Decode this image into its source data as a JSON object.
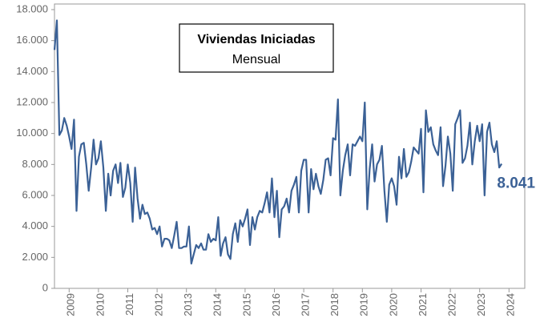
{
  "chart_data": {
    "type": "line",
    "title": "Viviendas Iniciadas",
    "subtitle": "Mensual",
    "series": [
      {
        "name": null,
        "color": "#3b6196",
        "values": [
          15400,
          17300,
          9900,
          10200,
          11000,
          10500,
          9800,
          9000,
          10900,
          5000,
          8500,
          9300,
          9400,
          8000,
          6300,
          7800,
          9600,
          8000,
          8400,
          9500,
          7800,
          5000,
          7400,
          6000,
          7600,
          8000,
          6800,
          8100,
          5900,
          6500,
          8000,
          6800,
          4300,
          7800,
          5800,
          4500,
          5400,
          4800,
          4900,
          4500,
          3800,
          3900,
          3500,
          4000,
          2700,
          3200,
          3200,
          3100,
          2600,
          3400,
          4300,
          2600,
          2600,
          2700,
          2700,
          4000,
          1600,
          2200,
          2800,
          2600,
          2900,
          2500,
          2500,
          3500,
          3000,
          3200,
          3100,
          4600,
          2100,
          2900,
          3300,
          2200,
          1900,
          3500,
          4200,
          3000,
          4400,
          4000,
          4500,
          5100,
          2800,
          4600,
          3800,
          4600,
          5000,
          4900,
          5500,
          6200,
          4900,
          7100,
          4600,
          6300,
          3300,
          5100,
          5300,
          5800,
          4900,
          6300,
          6700,
          7200,
          4900,
          7600,
          8300,
          8300,
          4900,
          7700,
          6400,
          7400,
          6600,
          6100,
          7000,
          8300,
          8400,
          7300,
          9700,
          9600,
          12200,
          6000,
          7600,
          8600,
          9300,
          7300,
          9300,
          9200,
          9500,
          9800,
          9500,
          12000,
          5100,
          7700,
          9300,
          6900,
          8000,
          8300,
          9200,
          6300,
          4300,
          6700,
          7100,
          6600,
          5400,
          8500,
          7100,
          9000,
          7200,
          7500,
          8200,
          9100,
          8900,
          8700,
          10300,
          6200,
          11500,
          10100,
          10400,
          9300,
          8900,
          8600,
          10400,
          6600,
          7900,
          9800,
          8700,
          6300,
          10600,
          11000,
          11500,
          8100,
          8400,
          9200,
          10700,
          8000,
          9500,
          10500,
          9500,
          10600,
          6000,
          10100,
          10700,
          9300,
          8800,
          9500,
          7800,
          8041
        ],
        "value_labels": [
          null,
          null,
          null,
          null,
          null,
          null,
          null,
          null,
          null,
          null,
          null,
          null,
          null,
          null,
          null,
          null,
          null,
          null,
          null,
          null,
          null,
          null,
          null,
          null,
          null,
          null,
          null,
          null,
          null,
          null,
          null,
          null,
          null,
          null,
          null,
          null,
          null,
          null,
          null,
          null,
          null,
          null,
          null,
          null,
          null,
          null,
          null,
          null,
          null,
          null,
          null,
          null,
          null,
          null,
          null,
          null,
          null,
          null,
          null,
          null,
          null,
          null,
          null,
          null,
          null,
          null,
          null,
          null,
          null,
          null,
          null,
          null,
          null,
          null,
          null,
          null,
          null,
          null,
          null,
          null,
          null,
          null,
          null,
          null,
          null,
          null,
          null,
          null,
          null,
          null,
          null,
          null,
          null,
          null,
          null,
          null,
          null,
          null,
          null,
          null,
          null,
          null,
          null,
          null,
          null,
          null,
          null,
          null,
          null,
          null,
          null,
          null,
          null,
          null,
          null,
          null,
          null,
          null,
          null,
          null,
          null,
          null,
          null,
          null,
          null,
          null,
          null,
          null,
          null,
          null,
          null,
          null,
          null,
          null,
          null,
          null,
          null,
          null,
          null,
          null,
          null,
          null,
          null,
          null,
          null,
          null,
          null,
          null,
          null,
          null,
          null,
          null,
          null,
          null,
          null,
          null,
          null,
          null,
          null,
          null,
          null,
          null,
          null,
          null,
          null,
          null,
          null,
          null,
          null,
          null,
          null,
          null,
          null,
          null,
          null,
          null,
          null,
          null,
          null,
          null,
          null,
          null,
          null,
          "8.041"
        ]
      }
    ],
    "xlim": [
      0,
      192
    ],
    "xticks": [
      {
        "value": 6,
        "label": "2009"
      },
      {
        "value": 18,
        "label": "2010"
      },
      {
        "value": 30,
        "label": "2011"
      },
      {
        "value": 42,
        "label": "2012"
      },
      {
        "value": 54,
        "label": "2013"
      },
      {
        "value": 66,
        "label": "2014"
      },
      {
        "value": 78,
        "label": "2015"
      },
      {
        "value": 90,
        "label": "2016"
      },
      {
        "value": 102,
        "label": "2017"
      },
      {
        "value": 114,
        "label": "2018"
      },
      {
        "value": 126,
        "label": "2019"
      },
      {
        "value": 138,
        "label": "2020"
      },
      {
        "value": 150,
        "label": "2021"
      },
      {
        "value": 162,
        "label": "2022"
      },
      {
        "value": 174,
        "label": "2023"
      },
      {
        "value": 186,
        "label": "2024"
      }
    ],
    "ylim": [
      0,
      18000
    ],
    "yticks": [
      0,
      {
        "value": 2000,
        "label": "2.000"
      },
      {
        "value": 4000,
        "label": "4.000"
      },
      {
        "value": 6000,
        "label": "6.000"
      },
      {
        "value": 8000,
        "label": "8.000"
      },
      {
        "value": 10000,
        "label": "10.000"
      },
      {
        "value": 12000,
        "label": "12.000"
      },
      {
        "value": 14000,
        "label": "14.000"
      },
      {
        "value": 16000,
        "label": "16.000"
      },
      {
        "value": 18000,
        "label": "18.000"
      }
    ],
    "grid": false
  }
}
